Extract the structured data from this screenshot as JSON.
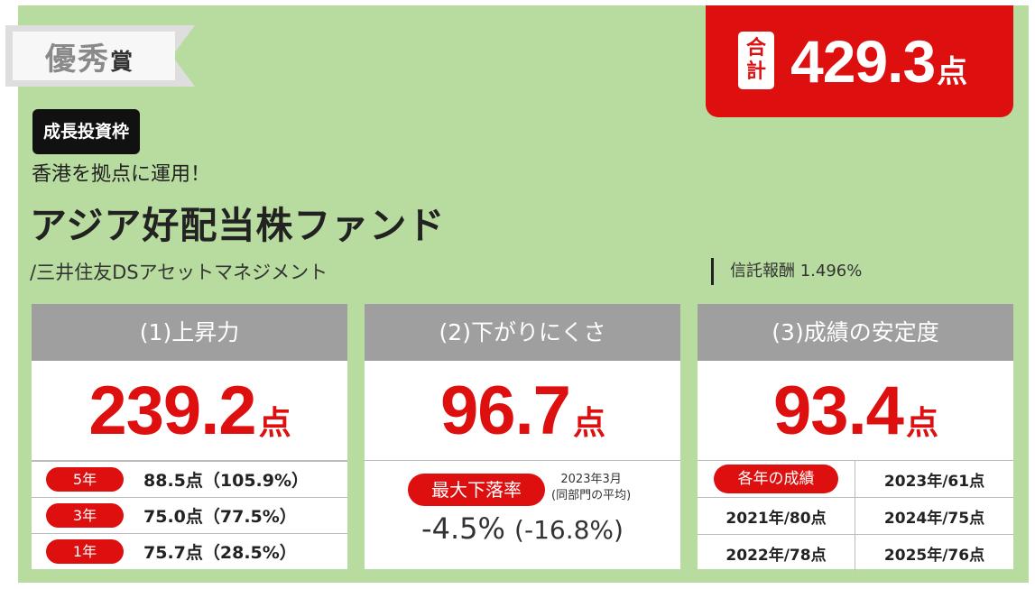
{
  "award": {
    "big": "優秀",
    "small": "賞"
  },
  "total": {
    "tag_line1": "合",
    "tag_line2": "計",
    "value": "429.3",
    "unit": "点"
  },
  "frame_label": "成長投資枠",
  "subtitle": "香港を拠点に運用！",
  "fund_name": "アジア好配当株ファンド",
  "company": "/三井住友DSアセットマネジメント",
  "fee": "信託報酬 1.496%",
  "cards": [
    {
      "title": "(1)上昇力",
      "score": "239.2",
      "unit": "点",
      "rows": [
        {
          "label": "5年",
          "value": "88.5点（105.9%）"
        },
        {
          "label": "3年",
          "value": "75.0点（77.5%）"
        },
        {
          "label": "1年",
          "value": "75.7点（28.5%）"
        }
      ]
    },
    {
      "title": "(2)下がりにくさ",
      "score": "96.7",
      "unit": "点",
      "drawdown_label": "最大下落率",
      "note_line1": "2023年3月",
      "note_line2": "(同部門の平均)",
      "drawdown_value": "-4.5%",
      "drawdown_avg": "(-16.8%)"
    },
    {
      "title": "(3)成績の安定度",
      "score": "93.4",
      "unit": "点",
      "grid_label": "各年の成績",
      "years": [
        "2023年/61点",
        "2021年/80点",
        "2024年/75点",
        "2022年/78点",
        "2025年/76点"
      ]
    }
  ],
  "colors": {
    "background": "#b8dca0",
    "accent": "#dd0f0f",
    "header_gray": "#9f9f9f"
  }
}
